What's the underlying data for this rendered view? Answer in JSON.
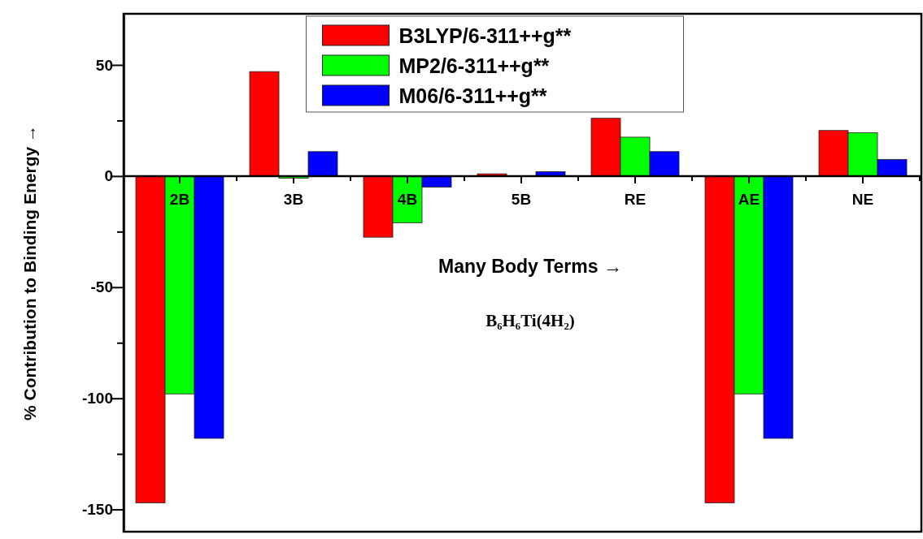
{
  "chart_data": {
    "type": "bar",
    "ylabel": "% Contribution to Binding Energy →",
    "xlabel": "Many Body Terms →",
    "annotations": [
      "B₆H₆Ti(4H₂)"
    ],
    "categories": [
      "2B",
      "3B",
      "4B",
      "5B",
      "RE",
      "AE",
      "NE"
    ],
    "series": [
      {
        "name": "B3LYP/6-311++g**",
        "color": "#ff0000",
        "values": [
          -147,
          47,
          -27.5,
          1,
          26,
          -147,
          20.5
        ]
      },
      {
        "name": "MP2/6-311++g**",
        "color": "#00ff00",
        "values": [
          -98,
          -1,
          -21,
          0,
          17.5,
          -98,
          19.5
        ]
      },
      {
        "name": "M06/6-311++g**",
        "color": "#0000ff",
        "values": [
          -118,
          11,
          -5,
          2,
          11,
          -118,
          7.5
        ]
      }
    ],
    "ylim": [
      -160,
      73
    ],
    "yticks": [
      {
        "value": -150,
        "label": "-150"
      },
      {
        "value": -125,
        "label": null
      },
      {
        "value": -100,
        "label": "-100"
      },
      {
        "value": -75,
        "label": null
      },
      {
        "value": -50,
        "label": "-50"
      },
      {
        "value": -25,
        "label": null
      },
      0,
      {
        "value": 25,
        "label": null
      },
      50
    ],
    "legend": "top",
    "grid": false
  }
}
